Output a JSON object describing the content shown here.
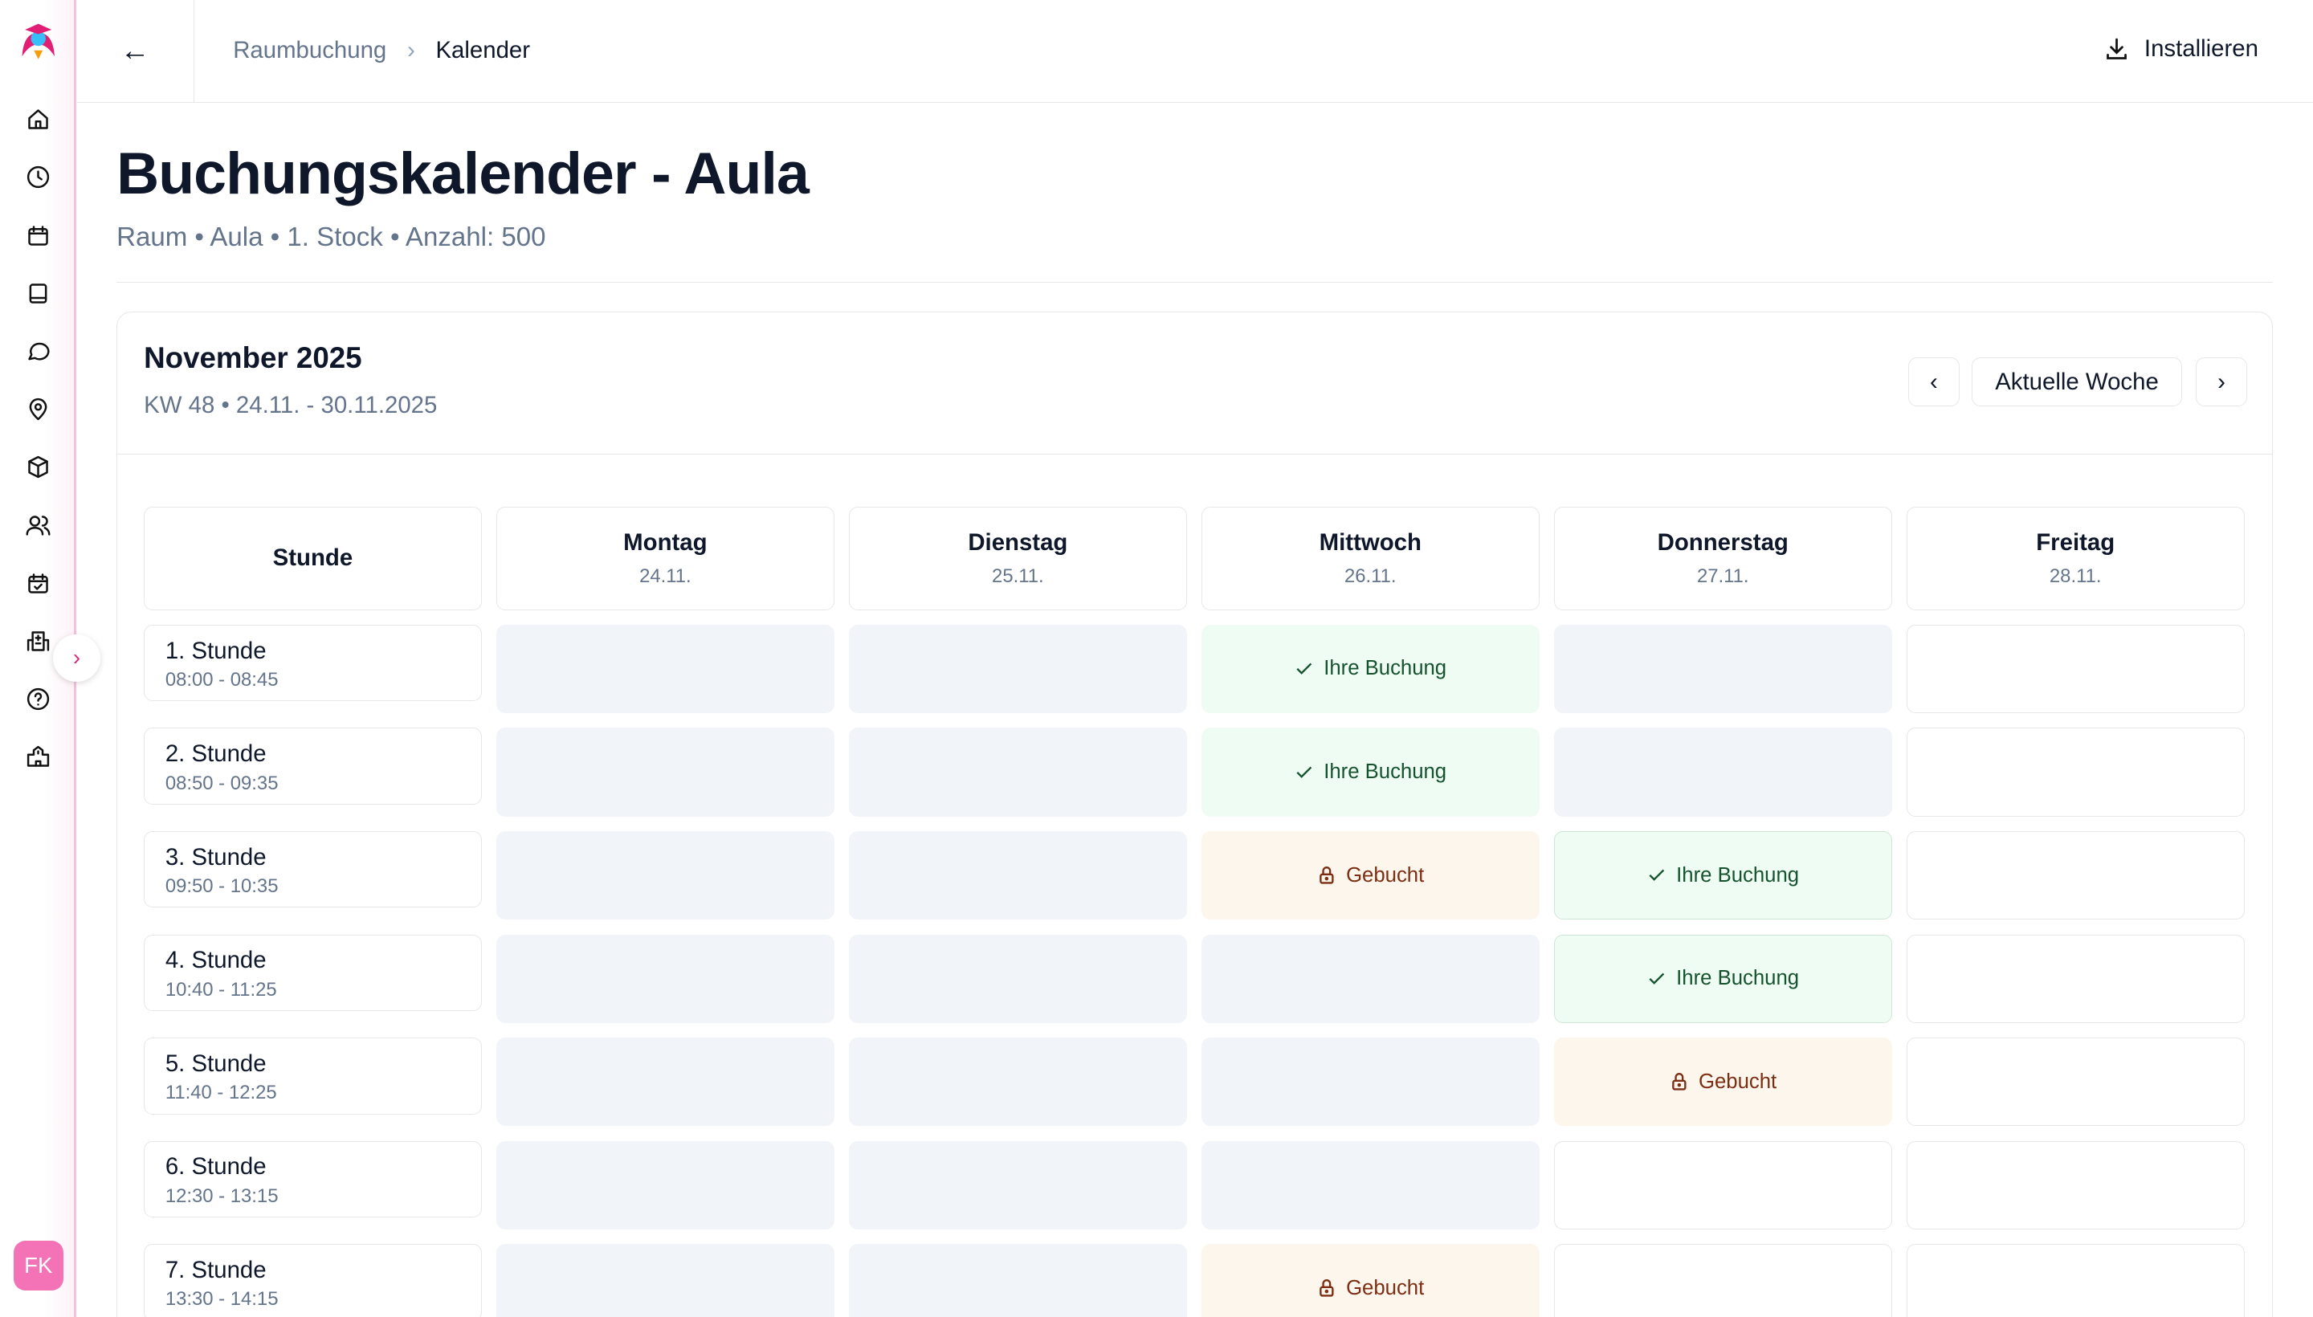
{
  "sidebar": {
    "items": [
      "home",
      "history",
      "calendar",
      "book",
      "chat",
      "location",
      "package",
      "users",
      "calendar-check",
      "building-plus",
      "help",
      "school"
    ],
    "avatar": "FK"
  },
  "header": {
    "breadcrumb": [
      "Raumbuchung",
      "Kalender"
    ],
    "install": "Installieren"
  },
  "page": {
    "title": "Buchungskalender - Aula",
    "subtitle": "Raum • Aula • 1. Stock • Anzahl: 500"
  },
  "calendar": {
    "month": "November 2025",
    "week": "KW 48 • 24.11. - 30.11.2025",
    "current_week": "Aktuelle Woche",
    "stunde_header": "Stunde",
    "days": [
      {
        "name": "Montag",
        "date": "24.11."
      },
      {
        "name": "Dienstag",
        "date": "25.11."
      },
      {
        "name": "Mittwoch",
        "date": "26.11."
      },
      {
        "name": "Donnerstag",
        "date": "27.11."
      },
      {
        "name": "Freitag",
        "date": "28.11."
      }
    ],
    "periods": [
      {
        "name": "1. Stunde",
        "time": "08:00 - 08:45"
      },
      {
        "name": "2. Stunde",
        "time": "08:50 - 09:35"
      },
      {
        "name": "3. Stunde",
        "time": "09:50 - 10:35"
      },
      {
        "name": "4. Stunde",
        "time": "10:40 - 11:25"
      },
      {
        "name": "5. Stunde",
        "time": "11:40 - 12:25"
      },
      {
        "name": "6. Stunde",
        "time": "12:30 - 13:15"
      },
      {
        "name": "7. Stunde",
        "time": "13:30 - 14:15"
      }
    ],
    "labels": {
      "own": "Ihre Buchung",
      "booked": "Gebucht"
    },
    "slots": [
      [
        "past",
        "past",
        "own",
        "past",
        "free"
      ],
      [
        "past",
        "past",
        "own",
        "past",
        "free"
      ],
      [
        "past",
        "past",
        "booked",
        "own",
        "free"
      ],
      [
        "past",
        "past",
        "past",
        "own",
        "free"
      ],
      [
        "past",
        "past",
        "past",
        "booked",
        "free"
      ],
      [
        "past",
        "past",
        "past",
        "free",
        "free"
      ],
      [
        "past",
        "past",
        "booked",
        "free",
        "free"
      ]
    ]
  },
  "colors": {
    "accent": "#db2777",
    "own_bg": "#effcf3",
    "booked_bg": "#fdf6ec",
    "past_bg": "#f1f4f8"
  }
}
